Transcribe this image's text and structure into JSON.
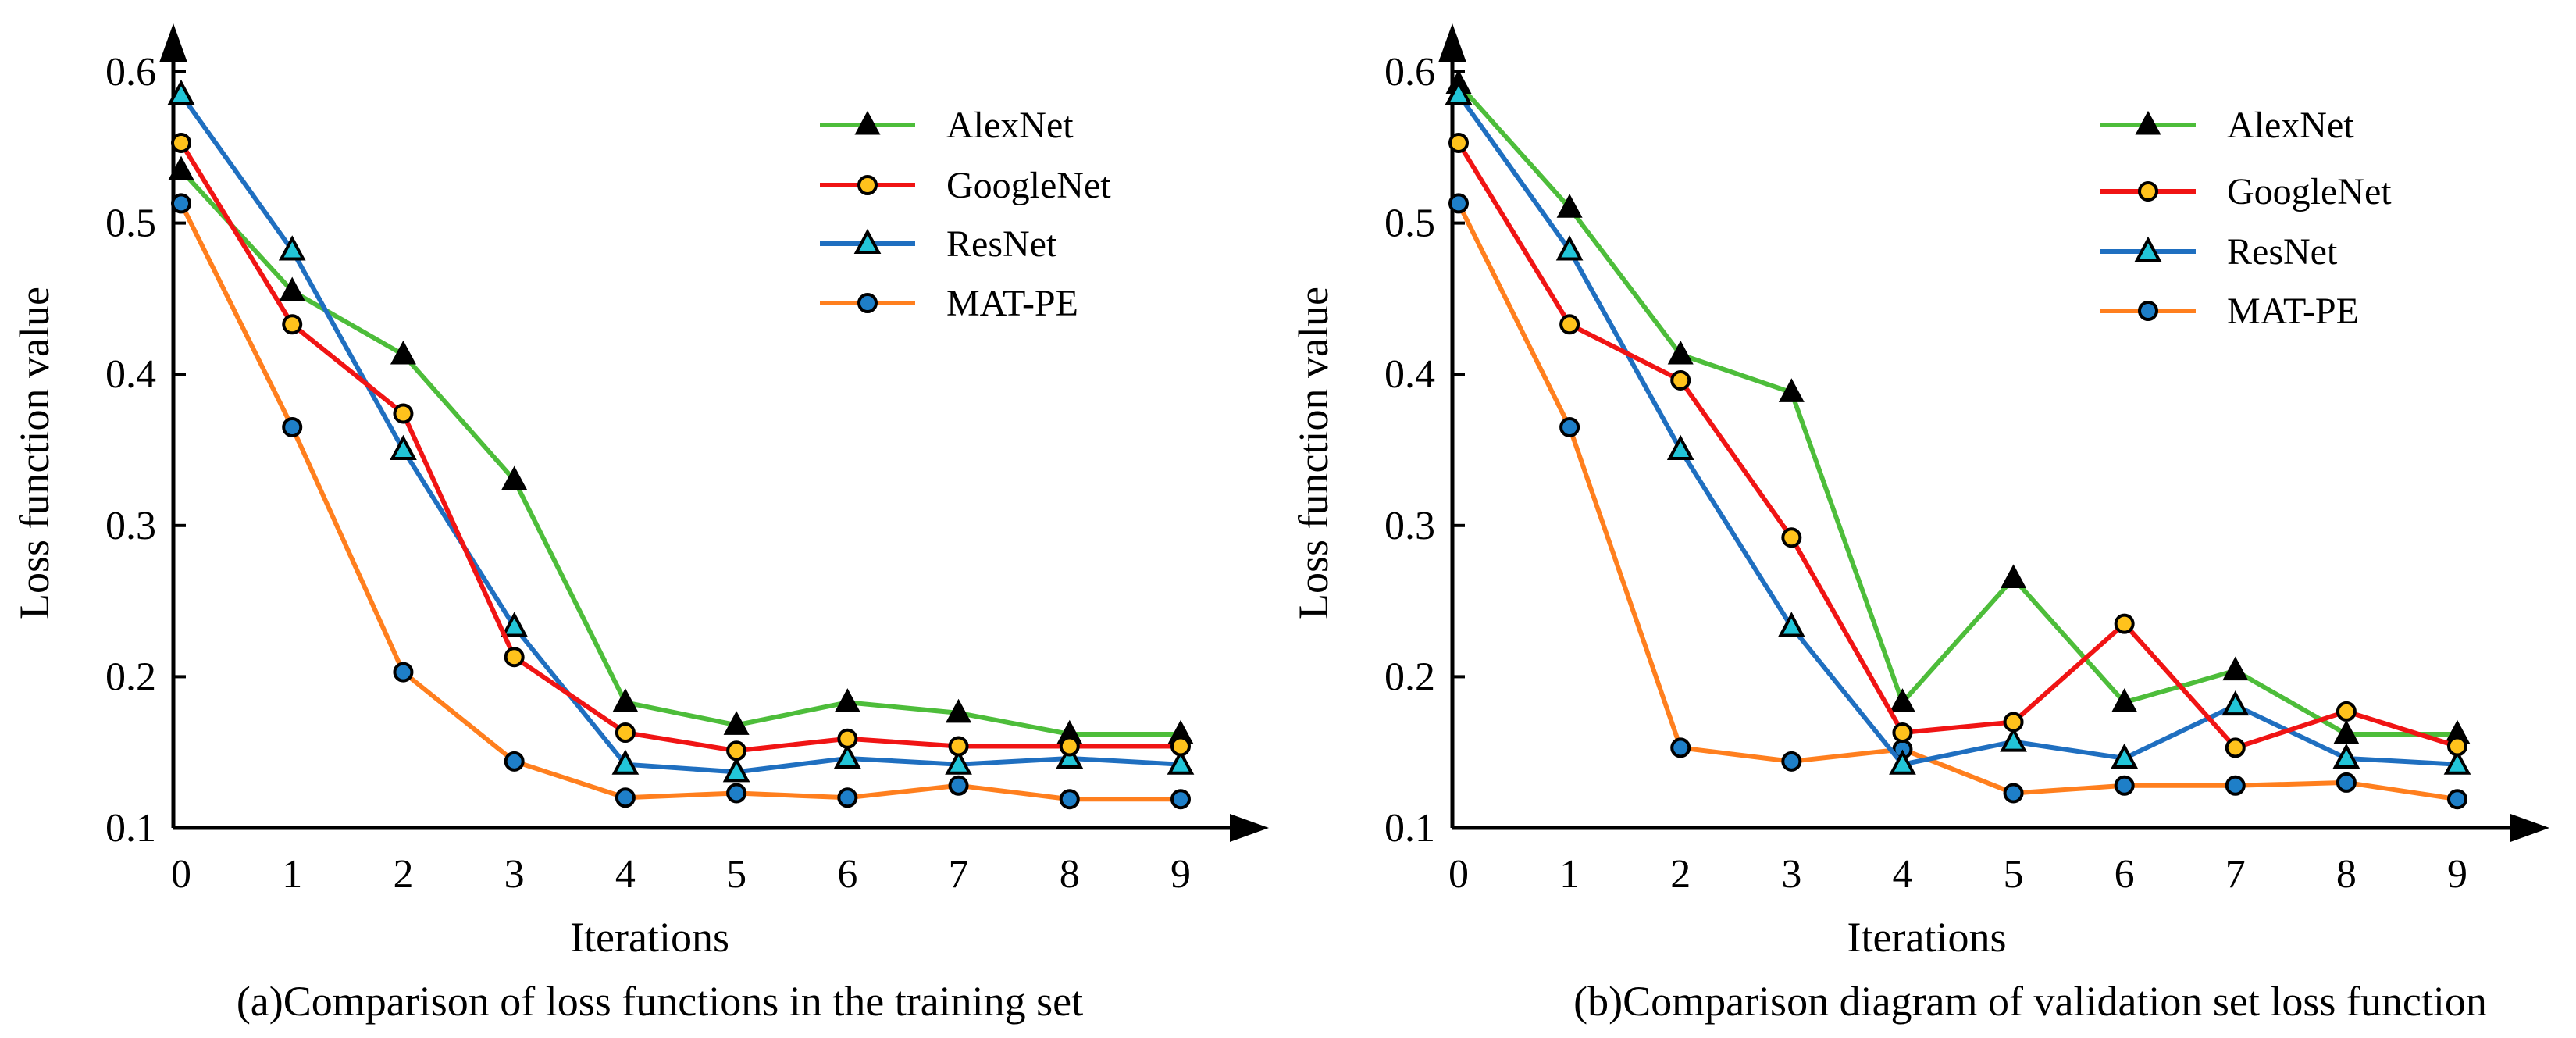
{
  "colors": {
    "AlexNet": "#4dbd3a",
    "GoogleNet": "#f01414",
    "ResNet": "#1f6fc0",
    "MAT-PE": "#ff7f1e",
    "axis": "#000000"
  },
  "chart_data": [
    {
      "type": "line",
      "caption": "(a)Comparison of loss functions in the training set",
      "xlabel": "Iterations",
      "ylabel": "Loss function value",
      "xlim": [
        0,
        9
      ],
      "ylim": [
        0.1,
        0.6
      ],
      "x": [
        0,
        1,
        2,
        3,
        4,
        5,
        6,
        7,
        8,
        9
      ],
      "xticks": [
        "0",
        "1",
        "2",
        "3",
        "4",
        "5",
        "6",
        "7",
        "8",
        "9"
      ],
      "yticks": [
        "0.1",
        "0.2",
        "0.3",
        "0.4",
        "0.5",
        "0.6"
      ],
      "legend_position": "top-right",
      "series": [
        {
          "name": "AlexNet",
          "marker": "triangle-filled",
          "values": [
            0.535,
            0.455,
            0.413,
            0.33,
            0.183,
            0.168,
            0.183,
            0.176,
            0.162,
            0.162
          ]
        },
        {
          "name": "GoogleNet",
          "marker": "circle-yellow",
          "values": [
            0.553,
            0.433,
            0.374,
            0.213,
            0.163,
            0.151,
            0.159,
            0.154,
            0.154,
            0.154
          ]
        },
        {
          "name": "ResNet",
          "marker": "triangle-cyan",
          "values": [
            0.585,
            0.482,
            0.35,
            0.233,
            0.142,
            0.137,
            0.146,
            0.142,
            0.146,
            0.142
          ]
        },
        {
          "name": "MAT-PE",
          "marker": "circle-blue",
          "values": [
            0.513,
            0.365,
            0.203,
            0.144,
            0.12,
            0.123,
            0.12,
            0.128,
            0.119,
            0.119
          ]
        }
      ]
    },
    {
      "type": "line",
      "caption": "(b)Comparison diagram of validation set loss function",
      "xlabel": "Iterations",
      "ylabel": "Loss function value",
      "xlim": [
        0,
        9
      ],
      "ylim": [
        0.1,
        0.6
      ],
      "x": [
        0,
        1,
        2,
        3,
        4,
        5,
        6,
        7,
        8,
        9
      ],
      "xticks": [
        "0",
        "1",
        "2",
        "3",
        "4",
        "5",
        "6",
        "7",
        "8",
        "9"
      ],
      "yticks": [
        "0.1",
        "0.2",
        "0.3",
        "0.4",
        "0.5",
        "0.6"
      ],
      "legend_position": "top-right",
      "series": [
        {
          "name": "AlexNet",
          "marker": "triangle-filled",
          "values": [
            0.592,
            0.51,
            0.413,
            0.388,
            0.183,
            0.265,
            0.183,
            0.204,
            0.162,
            0.162
          ]
        },
        {
          "name": "GoogleNet",
          "marker": "circle-yellow",
          "values": [
            0.553,
            0.433,
            0.396,
            0.292,
            0.163,
            0.17,
            0.235,
            0.153,
            0.177,
            0.154
          ]
        },
        {
          "name": "ResNet",
          "marker": "triangle-cyan",
          "values": [
            0.585,
            0.482,
            0.35,
            0.233,
            0.142,
            0.157,
            0.146,
            0.181,
            0.146,
            0.142
          ]
        },
        {
          "name": "MAT-PE",
          "marker": "circle-blue",
          "values": [
            0.513,
            0.365,
            0.153,
            0.144,
            0.152,
            0.123,
            0.128,
            0.128,
            0.13,
            0.119
          ]
        }
      ]
    }
  ]
}
